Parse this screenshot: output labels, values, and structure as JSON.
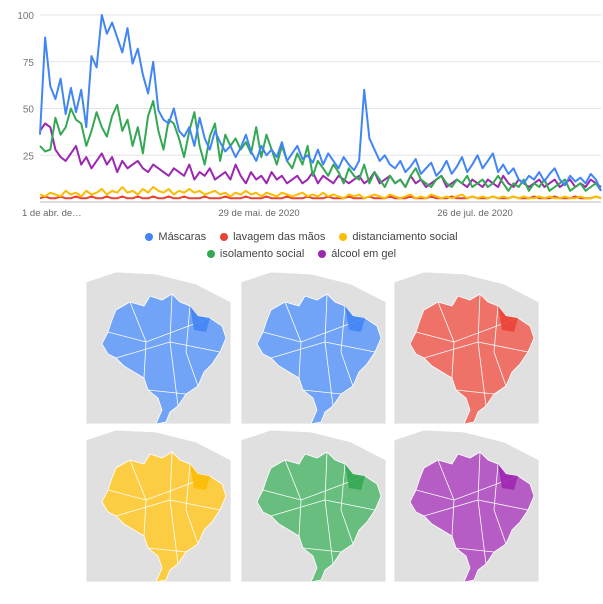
{
  "chart_data": {
    "type": "line",
    "title": "",
    "xlabel": "",
    "ylabel": "",
    "ylim": [
      0,
      100
    ],
    "yticks": [
      25,
      50,
      75,
      100
    ],
    "xtick_labels": [
      "1 de abr. de…",
      "29 de mai. de 2020",
      "26 de jul. de 2020"
    ],
    "grid": true,
    "legend_placement": "bottom",
    "series": [
      {
        "name": "Máscaras",
        "color": "#4285f4",
        "values": [
          36,
          88,
          62,
          55,
          66,
          47,
          61,
          48,
          60,
          40,
          78,
          72,
          100,
          90,
          96,
          88,
          80,
          93,
          74,
          82,
          68,
          58,
          75,
          49,
          44,
          42,
          50,
          38,
          35,
          40,
          30,
          45,
          34,
          28,
          38,
          32,
          27,
          30,
          24,
          29,
          36,
          27,
          22,
          30,
          25,
          28,
          24,
          32,
          22,
          26,
          30,
          23,
          25,
          21,
          28,
          20,
          26,
          22,
          18,
          24,
          20,
          17,
          22,
          60,
          34,
          28,
          22,
          25,
          20,
          18,
          22,
          16,
          19,
          23,
          15,
          18,
          21,
          14,
          17,
          22,
          15,
          19,
          24,
          16,
          20,
          25,
          18,
          22,
          26,
          16,
          20,
          15,
          18,
          12,
          10,
          14,
          12,
          16,
          11,
          15,
          18,
          12,
          9,
          14,
          11,
          13,
          10,
          15,
          12,
          6
        ]
      },
      {
        "name": "lavagem das mãos",
        "color": "#ea4335",
        "values": [
          2,
          3,
          2,
          2,
          3,
          2,
          2,
          3,
          2,
          2,
          3,
          2,
          2,
          3,
          2,
          2,
          3,
          2,
          2,
          3,
          2,
          2,
          3,
          2,
          2,
          3,
          2,
          2,
          3,
          2,
          2,
          2,
          3,
          2,
          2,
          2,
          3,
          2,
          2,
          2,
          3,
          2,
          2,
          2,
          3,
          2,
          2,
          2,
          3,
          2,
          2,
          2,
          3,
          2,
          2,
          2,
          3,
          2,
          2,
          2,
          3,
          2,
          2,
          2,
          3,
          2,
          2,
          2,
          3,
          2,
          2,
          2,
          3,
          2,
          2,
          2,
          3,
          2,
          2,
          2,
          3,
          2,
          2,
          2,
          3,
          2,
          2,
          2,
          3,
          2,
          2,
          2,
          3,
          2,
          2,
          2,
          3,
          2,
          2,
          2,
          3,
          2,
          2,
          2,
          3,
          2,
          2,
          2,
          3,
          2
        ]
      },
      {
        "name": "distanciamento social",
        "color": "#fbbc04",
        "values": [
          4,
          3,
          5,
          4,
          3,
          6,
          4,
          5,
          3,
          6,
          4,
          5,
          7,
          4,
          6,
          5,
          8,
          5,
          6,
          4,
          7,
          5,
          8,
          6,
          5,
          7,
          4,
          6,
          5,
          7,
          5,
          6,
          4,
          5,
          6,
          4,
          5,
          3,
          5,
          4,
          6,
          4,
          5,
          3,
          5,
          4,
          3,
          5,
          4,
          3,
          4,
          5,
          3,
          4,
          3,
          5,
          3,
          4,
          3,
          2,
          4,
          3,
          4,
          2,
          3,
          4,
          3,
          2,
          4,
          3,
          2,
          3,
          4,
          2,
          3,
          2,
          4,
          3,
          2,
          3,
          2,
          3,
          4,
          2,
          3,
          2,
          3,
          2,
          3,
          2,
          3,
          2,
          3,
          2,
          3,
          2,
          2,
          3,
          2,
          3,
          2,
          2,
          3,
          2,
          2,
          3,
          2,
          2,
          3,
          2
        ]
      },
      {
        "name": "isolamento social",
        "color": "#34a853",
        "values": [
          30,
          27,
          28,
          45,
          36,
          40,
          50,
          44,
          42,
          30,
          38,
          48,
          40,
          35,
          46,
          52,
          38,
          44,
          30,
          40,
          26,
          46,
          54,
          38,
          28,
          44,
          42,
          34,
          24,
          38,
          48,
          30,
          20,
          35,
          42,
          22,
          36,
          30,
          34,
          28,
          32,
          26,
          40,
          24,
          36,
          28,
          20,
          30,
          22,
          18,
          26,
          20,
          30,
          14,
          22,
          18,
          14,
          20,
          16,
          10,
          18,
          14,
          12,
          20,
          10,
          16,
          12,
          8,
          14,
          10,
          12,
          8,
          14,
          18,
          12,
          10,
          8,
          12,
          14,
          10,
          8,
          12,
          10,
          14,
          8,
          10,
          12,
          8,
          10,
          14,
          10,
          6,
          10,
          8,
          12,
          6,
          10,
          8,
          12,
          6,
          8,
          10,
          12,
          6,
          8,
          10,
          6,
          8,
          10,
          6
        ]
      },
      {
        "name": "álcool em gel",
        "color": "#9c27b0",
        "values": [
          38,
          42,
          40,
          28,
          24,
          22,
          26,
          30,
          20,
          24,
          18,
          22,
          26,
          20,
          24,
          16,
          22,
          18,
          20,
          22,
          18,
          16,
          20,
          18,
          16,
          14,
          18,
          16,
          14,
          20,
          12,
          16,
          14,
          18,
          12,
          14,
          16,
          12,
          20,
          14,
          10,
          16,
          12,
          14,
          10,
          16,
          12,
          14,
          10,
          12,
          14,
          10,
          12,
          16,
          10,
          14,
          12,
          10,
          14,
          12,
          10,
          12,
          14,
          10,
          12,
          16,
          10,
          12,
          14,
          10,
          12,
          8,
          14,
          10,
          12,
          8,
          10,
          12,
          14,
          8,
          10,
          12,
          10,
          8,
          12,
          10,
          8,
          12,
          10,
          8,
          14,
          10,
          8,
          12,
          10,
          8,
          10,
          12,
          8,
          10,
          12,
          8,
          10,
          12,
          8,
          10,
          8,
          12,
          10,
          8
        ]
      }
    ]
  },
  "maps": [
    {
      "name": "Máscaras",
      "color": "#4285f4"
    },
    {
      "name": "lavagem das mãos",
      "color": "#4285f4"
    },
    {
      "name": "distanciamento social",
      "color": "#ea4335"
    },
    {
      "name": "isolamento social",
      "color": "#fbbc04"
    },
    {
      "name": "álcool em gel",
      "color": "#34a853"
    },
    {
      "name": "Máscaras",
      "color": "#9c27b0"
    }
  ]
}
